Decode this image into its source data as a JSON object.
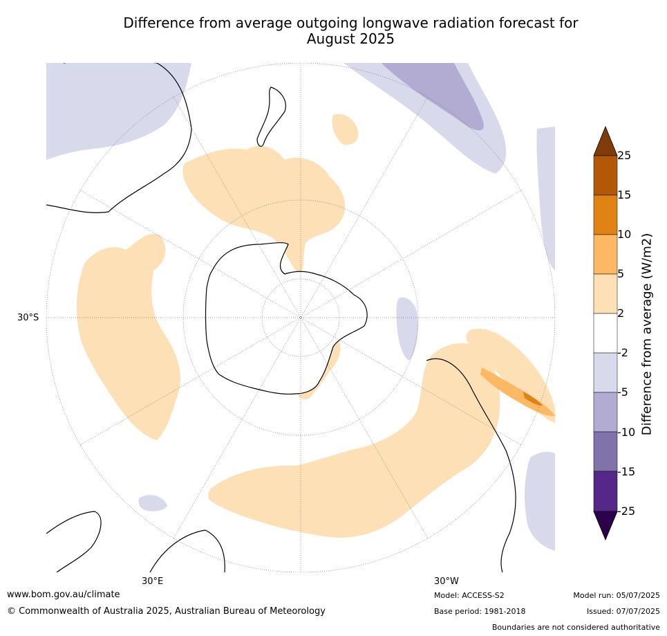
{
  "title_line1": "Difference from average outgoing longwave radiation forecast for",
  "title_line2": "August 2025",
  "map": {
    "projection": "south-polar-stereographic",
    "lat_labels": [
      "30°S"
    ],
    "lon_labels": [
      "30°E",
      "30°W"
    ],
    "colors": {
      "pos_2_5": "#fde0b6",
      "pos_5_10": "#fdb863",
      "pos_10_15": "#e08214",
      "pos_15_25": "#b35806",
      "pos_above_25": "#7f3b08",
      "neg_2_5": "#d8daeb",
      "neg_5_10": "#b2abd2",
      "neg_10_15": "#8073ac",
      "neg_15_25": "#542788",
      "neg_below_25": "#2d004b",
      "coastline": "#000000",
      "grid": "#777777"
    }
  },
  "colorbar": {
    "label": "Difference from average (W/m2)",
    "ticks": [
      "25",
      "15",
      "10",
      "5",
      "2",
      "-2",
      "-5",
      "-10",
      "-15",
      "-25"
    ],
    "bins": [
      {
        "range": "above 25",
        "color": "#7f3b08"
      },
      {
        "range": "15 to 25",
        "color": "#b35806"
      },
      {
        "range": "10 to 15",
        "color": "#e08214"
      },
      {
        "range": "5 to 10",
        "color": "#fdb863"
      },
      {
        "range": "2 to 5",
        "color": "#fde0b6"
      },
      {
        "range": "-2 to 2",
        "color": "#ffffff"
      },
      {
        "range": "-5 to -2",
        "color": "#d8daeb"
      },
      {
        "range": "-10 to -5",
        "color": "#b2abd2"
      },
      {
        "range": "-15 to -10",
        "color": "#8073ac"
      },
      {
        "range": "-25 to -15",
        "color": "#542788"
      },
      {
        "range": "below -25",
        "color": "#2d004b"
      }
    ]
  },
  "footer": {
    "url": "www.bom.gov.au/climate",
    "copyright": "© Commonwealth of Australia 2025, Australian Bureau of Meteorology",
    "model": "Model: ACCESS-S2",
    "base_period": "Base period: 1981-2018",
    "model_run": "Model run: 05/07/2025",
    "issued": "Issued: 07/07/2025",
    "disclaimer": "Boundaries are not considered authoritative"
  }
}
